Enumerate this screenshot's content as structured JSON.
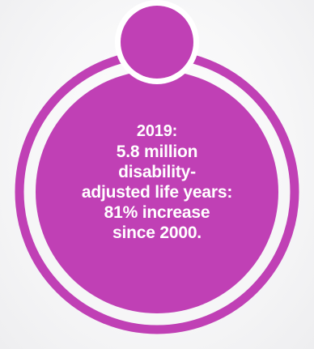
{
  "colors": {
    "accent": "#c040b5",
    "ring": "#c040b5",
    "text": "#ffffff",
    "background": "#f4f4f6"
  },
  "stat": {
    "year_line": "2019:",
    "lines": [
      "5.8 million",
      "disability-",
      "adjusted life years:",
      "81% increase",
      "since 2000."
    ]
  }
}
